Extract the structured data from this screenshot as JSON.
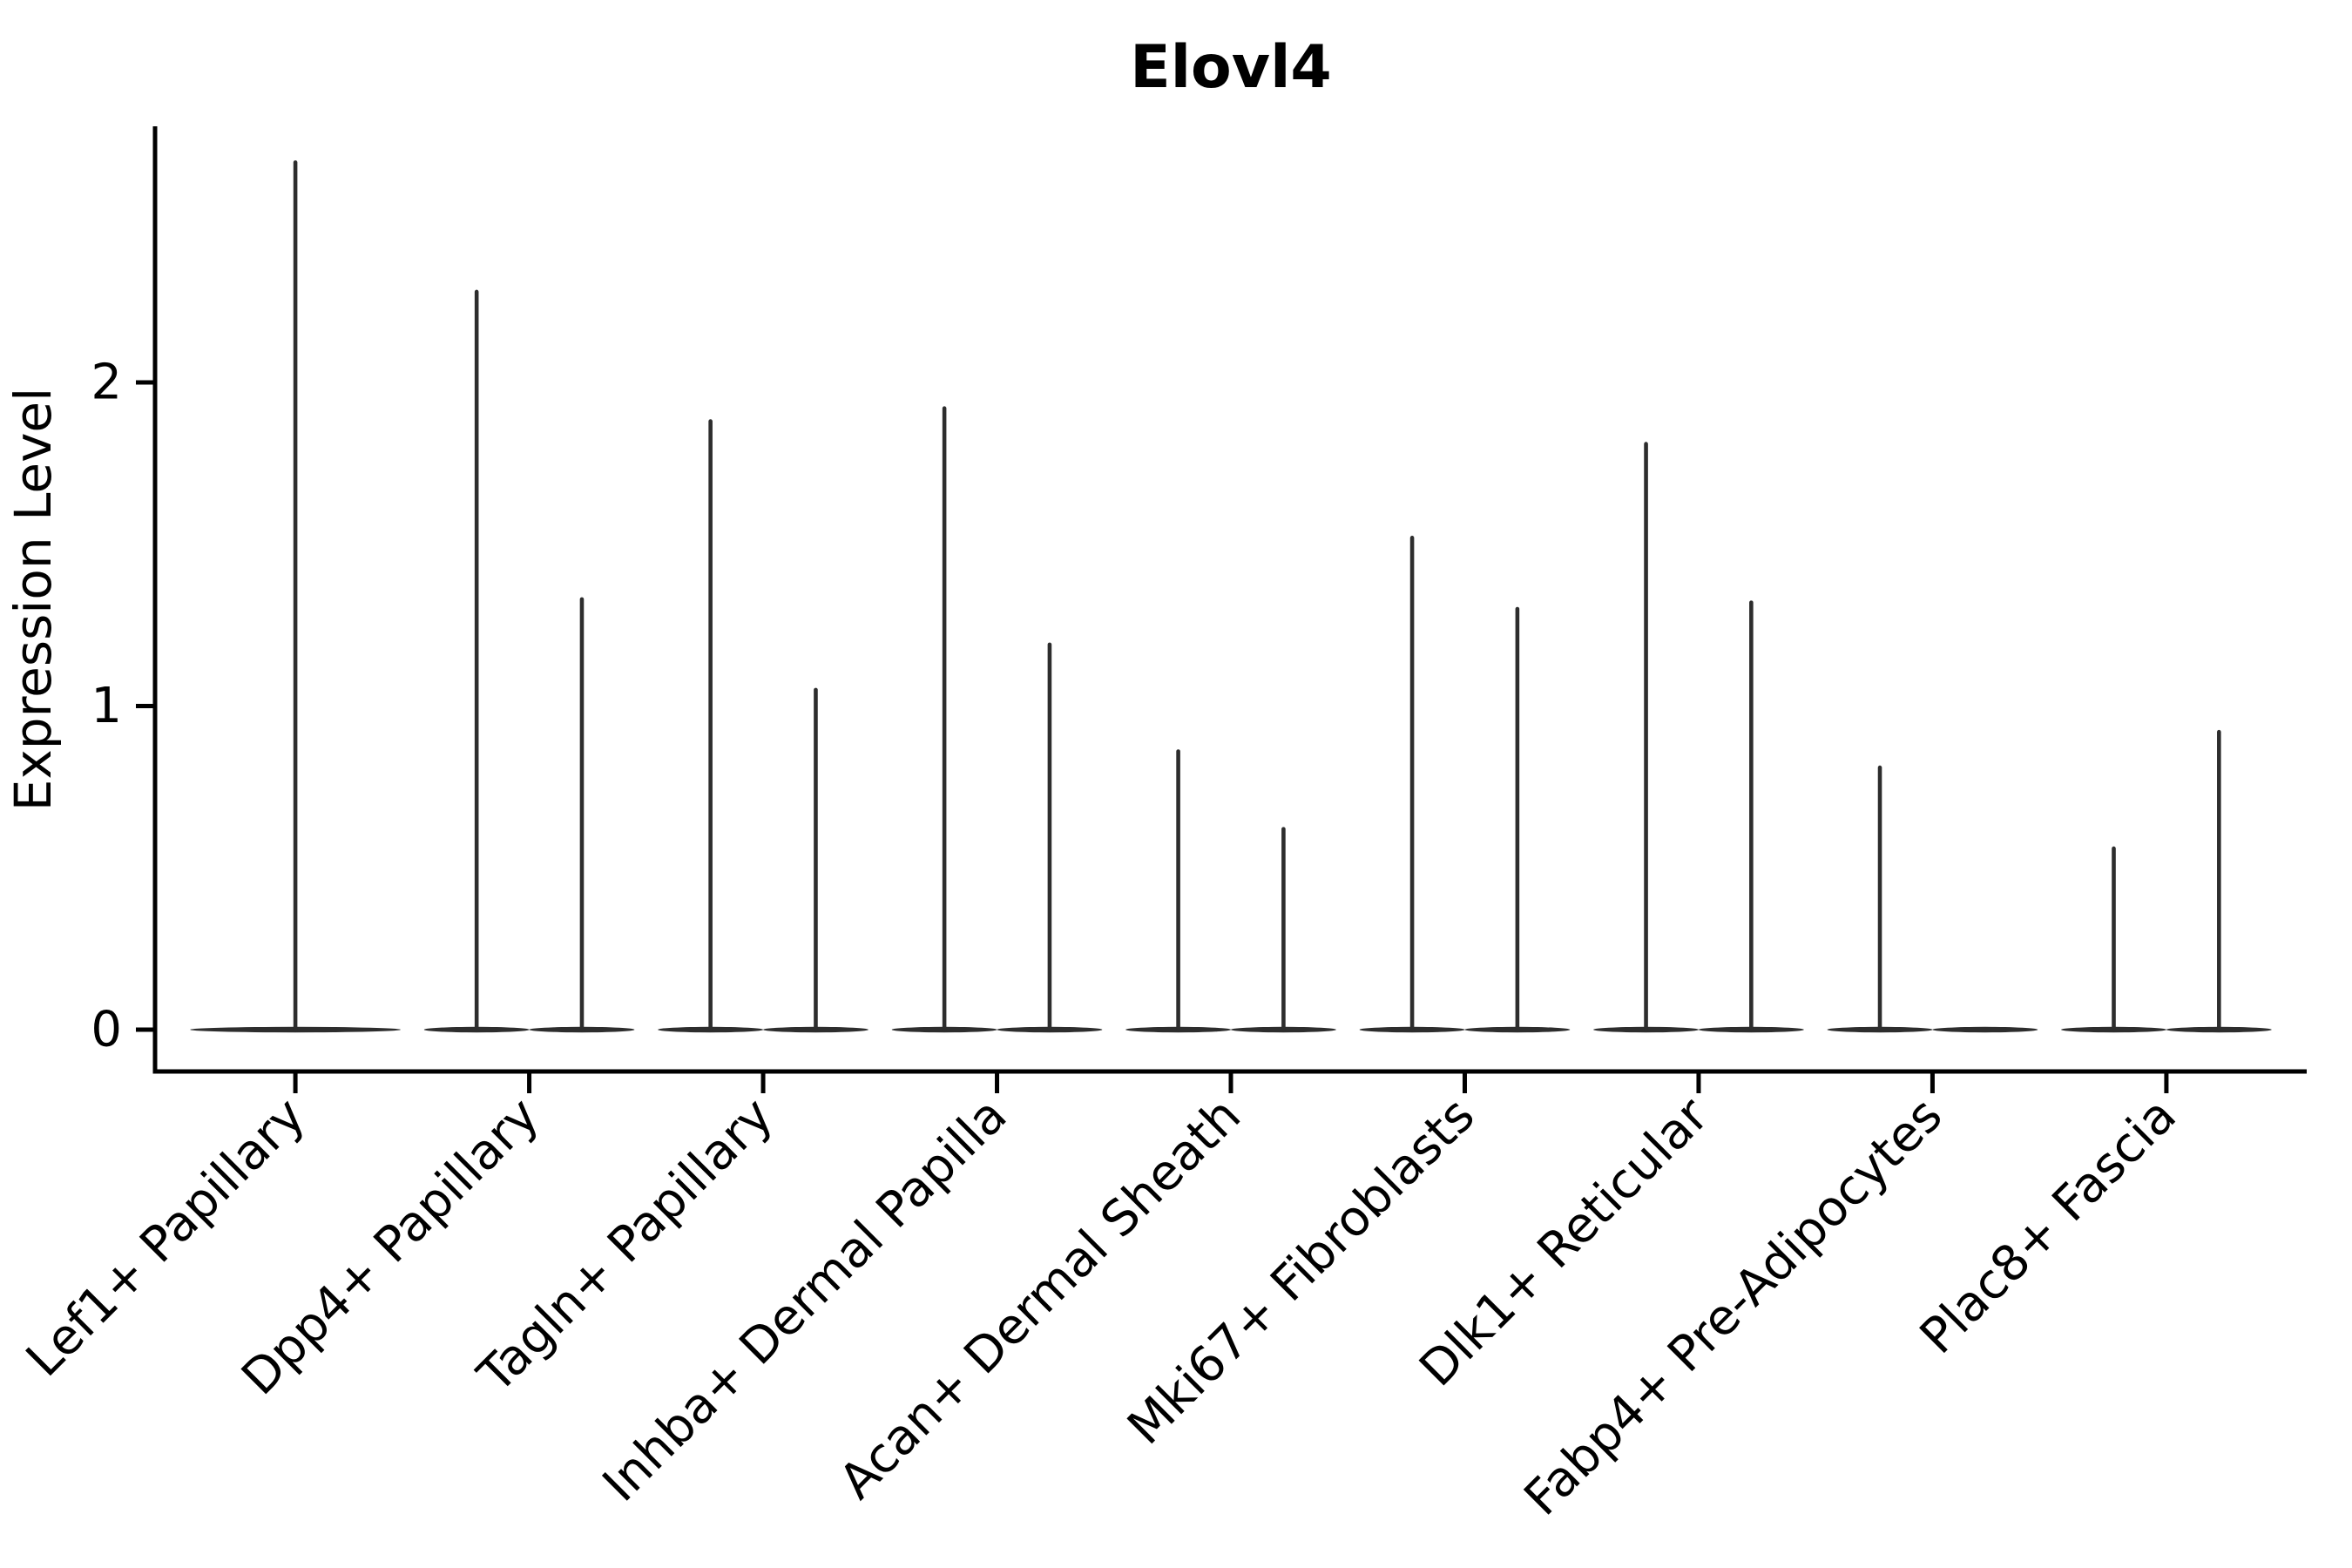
{
  "chart_data": {
    "type": "violin",
    "title": "Elovl4",
    "ylabel": "Expression Level",
    "xlabel": "",
    "y_axis": {
      "ticks": [
        0,
        1,
        2
      ],
      "max": 2.8,
      "min": 0
    },
    "legend": "none",
    "grid": "off",
    "categories": [
      "Lef1+ Papillary",
      "Dpp4+ Papillary",
      "Tagln+ Papillary",
      "Inhba+ Dermal Papilla",
      "Acan+ Dermal Sheath",
      "Mki67+ Fibroblasts",
      "Dlk1+ Reticular",
      "Fabp4+ Pre-Adipocytes",
      "Plac8+ Fascia"
    ],
    "violins": [
      {
        "label": "Lef1+ Papillary",
        "groups": [
          {
            "offset": 0,
            "width": 0.9,
            "max": 2.68
          }
        ]
      },
      {
        "label": "Dpp4+ Papillary",
        "groups": [
          {
            "offset": -0.225,
            "width": 0.45,
            "max": 2.28
          },
          {
            "offset": 0.225,
            "width": 0.45,
            "max": 1.33
          }
        ]
      },
      {
        "label": "Tagln+ Papillary",
        "groups": [
          {
            "offset": -0.225,
            "width": 0.45,
            "max": 1.88
          },
          {
            "offset": 0.225,
            "width": 0.45,
            "max": 1.05
          }
        ]
      },
      {
        "label": "Inhba+ Dermal Papilla",
        "groups": [
          {
            "offset": -0.225,
            "width": 0.45,
            "max": 1.92
          },
          {
            "offset": 0.225,
            "width": 0.45,
            "max": 1.19
          }
        ]
      },
      {
        "label": "Acan+ Dermal Sheath",
        "groups": [
          {
            "offset": -0.225,
            "width": 0.45,
            "max": 0.86
          },
          {
            "offset": 0.225,
            "width": 0.45,
            "max": 0.62
          }
        ]
      },
      {
        "label": "Mki67+ Fibroblasts",
        "groups": [
          {
            "offset": -0.225,
            "width": 0.45,
            "max": 1.52
          },
          {
            "offset": 0.225,
            "width": 0.45,
            "max": 1.3
          }
        ]
      },
      {
        "label": "Dlk1+ Reticular",
        "groups": [
          {
            "offset": -0.225,
            "width": 0.45,
            "max": 1.81
          },
          {
            "offset": 0.225,
            "width": 0.45,
            "max": 1.32
          }
        ]
      },
      {
        "label": "Fabp4+ Pre-Adipocytes",
        "groups": [
          {
            "offset": -0.225,
            "width": 0.45,
            "max": 0.81
          },
          {
            "offset": 0.225,
            "width": 0.45,
            "max": 0.0
          }
        ]
      },
      {
        "label": "Plac8+ Fascia",
        "groups": [
          {
            "offset": -0.225,
            "width": 0.45,
            "max": 0.56
          },
          {
            "offset": 0.225,
            "width": 0.45,
            "max": 0.92
          }
        ]
      }
    ],
    "style": {
      "violin_color": "#2d2d2d",
      "axis_color": "#000000",
      "text_color": "#000000",
      "background": "#ffffff"
    }
  }
}
